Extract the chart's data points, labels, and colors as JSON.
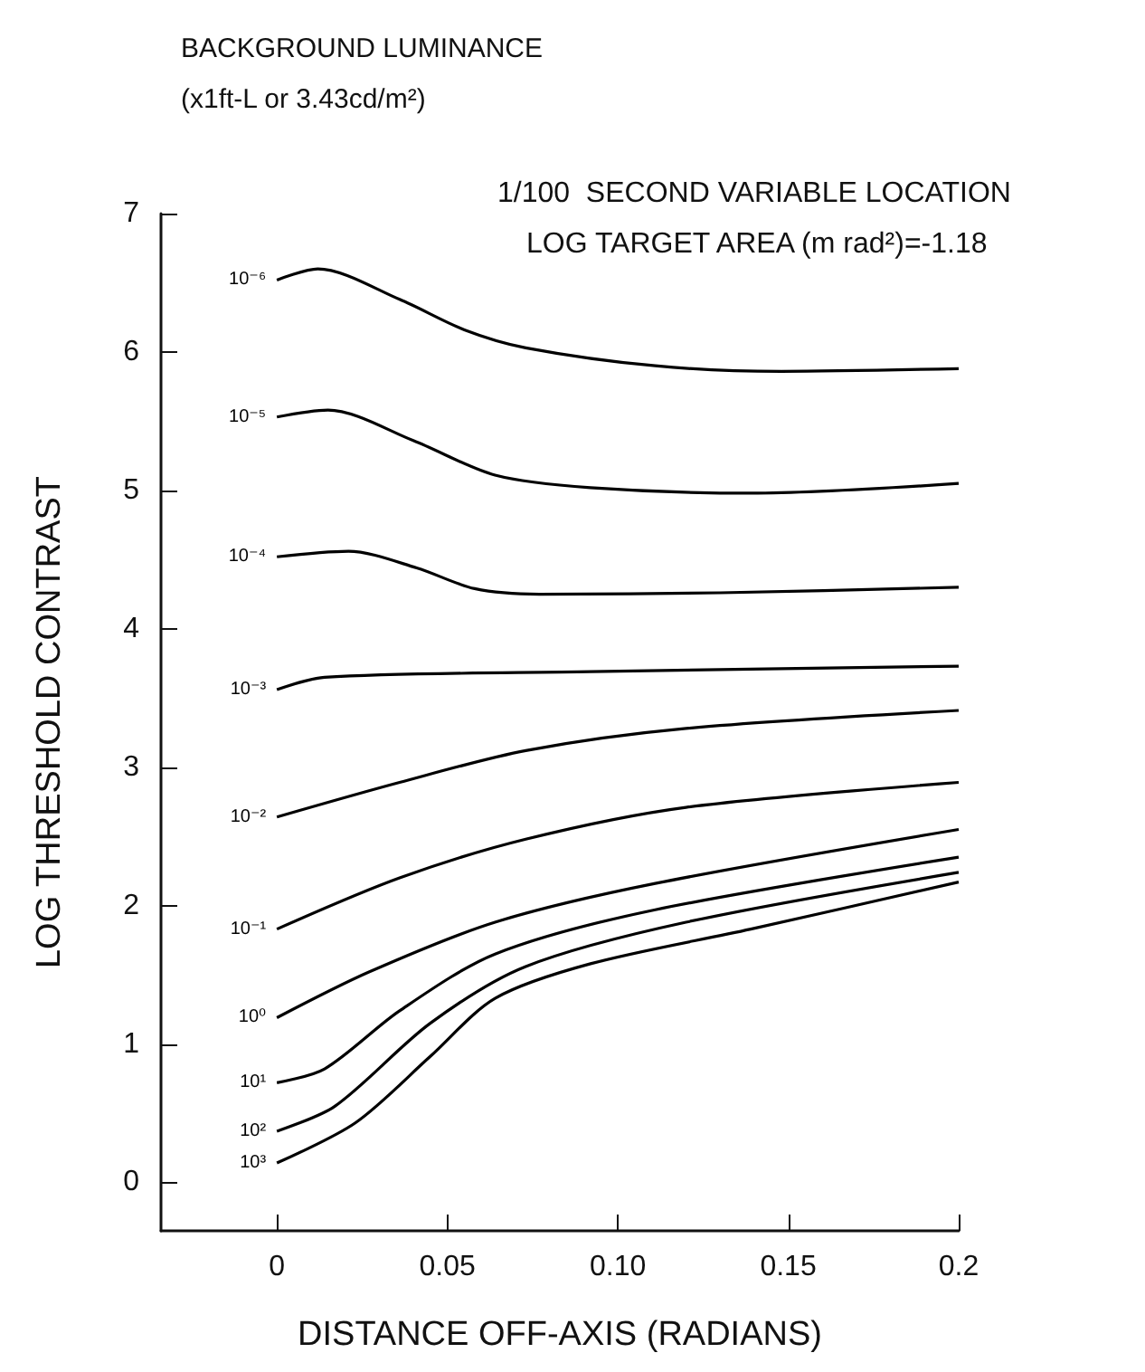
{
  "chart_data": {
    "type": "line",
    "title": "1/100  SECOND VARIABLE LOCATION",
    "subtitle": "LOG TARGET AREA (m rad²)=-1.18",
    "legend_title": "BACKGROUND LUMINANCE\n(x1ft-L or 3.43cd/m²)",
    "xlabel": "DISTANCE OFF-AXIS (RADIANS)",
    "ylabel": "LOG THRESHOLD CONTRAST",
    "xlim": [
      -0.034,
      0.2
    ],
    "xticks": [
      0,
      0.05,
      {
        "value": 0.1,
        "label": "0.10"
      },
      {
        "value": 0.15,
        "label": "0.15"
      },
      0.2
    ],
    "ylim": [
      -0.35,
      7
    ],
    "yticks": [
      0,
      1,
      2,
      3,
      4,
      5,
      6,
      7
    ],
    "grid": false,
    "legend": false,
    "marker": "none",
    "line_style": "solid",
    "series": [
      {
        "name": "10⁻⁶",
        "color": "#000000",
        "x": [
          0,
          0.012,
          0.036,
          0.055,
          0.073,
          0.111,
          0.148,
          0.2
        ],
        "values": [
          6.52,
          6.6,
          6.38,
          6.16,
          6.03,
          5.9,
          5.86,
          5.88
        ]
      },
      {
        "name": "10⁻⁵",
        "color": "#000000",
        "x": [
          0,
          0.015,
          0.04,
          0.064,
          0.092,
          0.139,
          0.2
        ],
        "values": [
          5.53,
          5.58,
          5.36,
          5.11,
          5.02,
          4.98,
          5.05
        ]
      },
      {
        "name": "10⁻⁴",
        "color": "#000000",
        "x": [
          0,
          0.021,
          0.041,
          0.058,
          0.077,
          0.13,
          0.2
        ],
        "values": [
          4.52,
          4.56,
          4.44,
          4.29,
          4.25,
          4.26,
          4.3
        ]
      },
      {
        "name": "10⁻³",
        "color": "#000000",
        "x": [
          0,
          0.014,
          0.092,
          0.2
        ],
        "values": [
          3.56,
          3.65,
          3.69,
          3.73
        ]
      },
      {
        "name": "10⁻²",
        "color": "#000000",
        "x": [
          0,
          0.036,
          0.073,
          0.12,
          0.2
        ],
        "values": [
          2.64,
          2.89,
          3.12,
          3.28,
          3.41
        ]
      },
      {
        "name": "10⁻¹",
        "color": "#000000",
        "x": [
          0,
          0.036,
          0.073,
          0.12,
          0.2
        ],
        "values": [
          1.83,
          2.2,
          2.48,
          2.71,
          2.89
        ]
      },
      {
        "name": "10⁰",
        "color": "#000000",
        "x": [
          0,
          0.027,
          0.064,
          0.111,
          0.2
        ],
        "values": [
          1.19,
          1.52,
          1.88,
          2.16,
          2.55
        ]
      },
      {
        "name": "10¹",
        "color": "#000000",
        "x": [
          0,
          0.014,
          0.036,
          0.064,
          0.111,
          0.2
        ],
        "values": [
          0.72,
          0.82,
          1.24,
          1.65,
          1.97,
          2.35
        ]
      },
      {
        "name": "10²",
        "color": "#000000",
        "x": [
          0,
          0.017,
          0.045,
          0.073,
          0.12,
          0.2
        ],
        "values": [
          0.37,
          0.55,
          1.15,
          1.56,
          1.88,
          2.24
        ]
      },
      {
        "name": "10³",
        "color": "#000000",
        "x": [
          0,
          0.023,
          0.045,
          0.064,
          0.092,
          0.139,
          0.2
        ],
        "values": [
          0.14,
          0.43,
          0.91,
          1.33,
          1.58,
          1.83,
          2.17
        ]
      }
    ]
  }
}
